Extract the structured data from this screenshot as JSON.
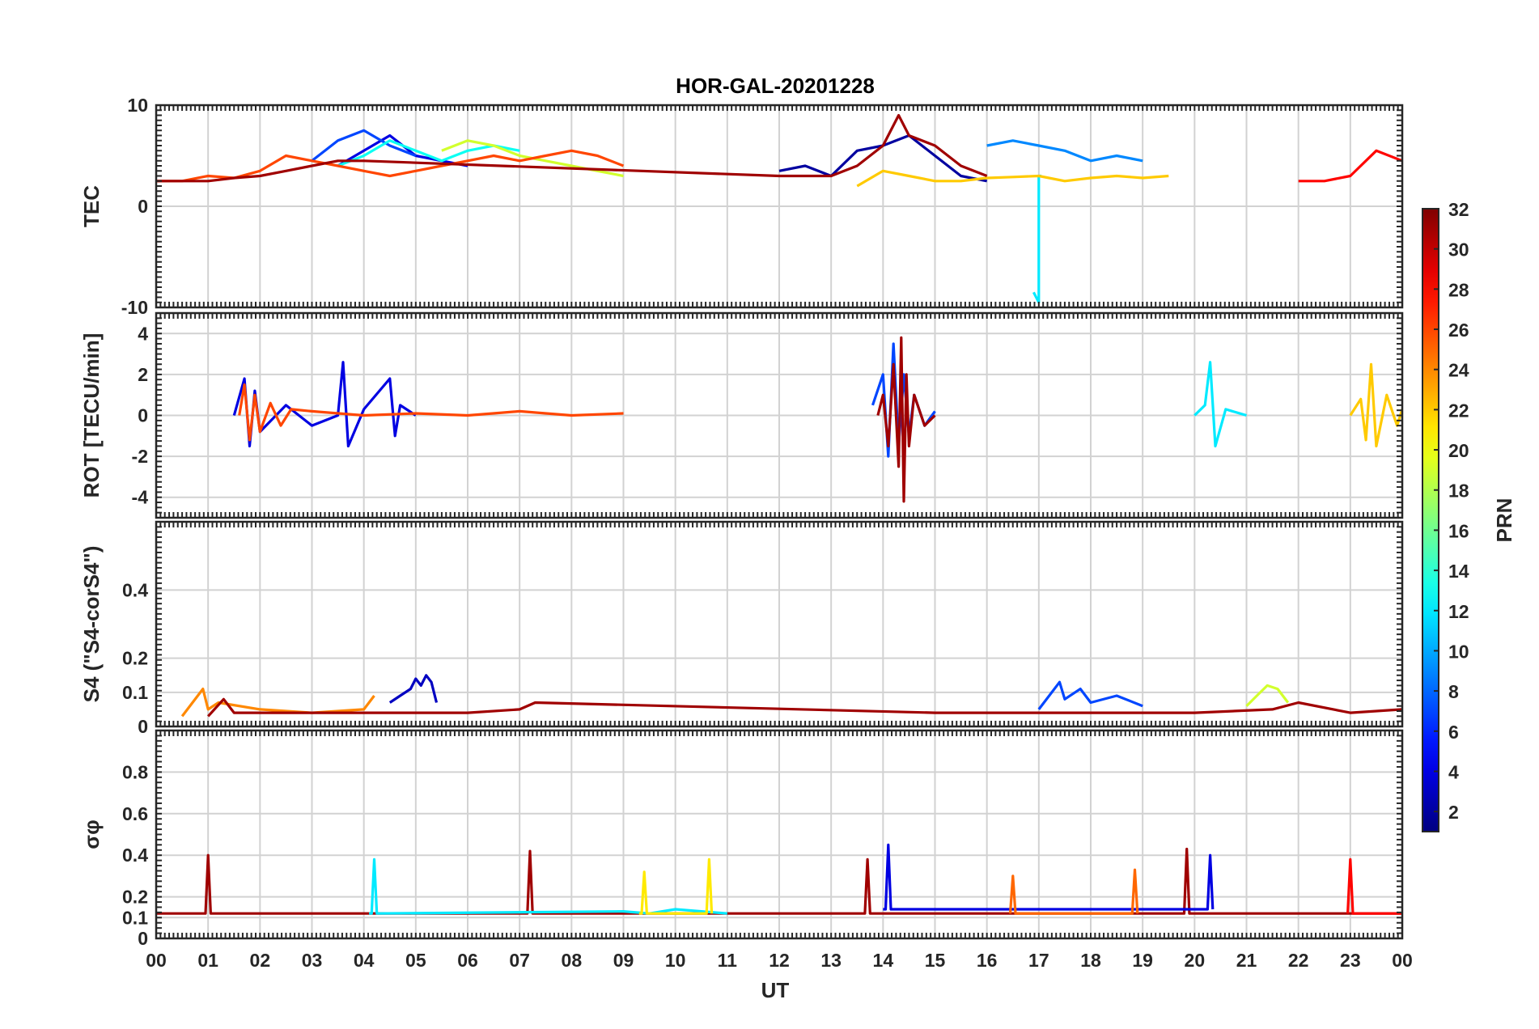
{
  "chart_data": {
    "type": "line",
    "title": "HOR-GAL-20201228",
    "xlabel": "UT",
    "x_ticks": [
      "00",
      "01",
      "02",
      "03",
      "04",
      "05",
      "06",
      "07",
      "08",
      "09",
      "10",
      "11",
      "12",
      "13",
      "14",
      "15",
      "16",
      "17",
      "18",
      "19",
      "20",
      "21",
      "22",
      "23",
      "00"
    ],
    "xlim": [
      0,
      24
    ],
    "colorbar": {
      "label": "PRN",
      "range": [
        1,
        32
      ],
      "ticks": [
        "2",
        "4",
        "6",
        "8",
        "10",
        "12",
        "14",
        "16",
        "18",
        "20",
        "22",
        "24",
        "26",
        "28",
        "30",
        "32"
      ]
    },
    "panels": [
      {
        "name": "tec",
        "ylabel": "TEC",
        "ylim": [
          -10,
          10
        ],
        "yticks": [
          "-10",
          "0",
          "10"
        ],
        "series": [
          {
            "prn": 2,
            "x": [
              12.0,
              12.5,
              13.0,
              13.5,
              14.0,
              14.5,
              15.0,
              15.5,
              16.0
            ],
            "y": [
              3.5,
              4.0,
              3.0,
              5.5,
              6.0,
              7.0,
              5.0,
              3.0,
              2.5
            ]
          },
          {
            "prn": 4,
            "x": [
              3.5,
              4.0,
              4.5,
              5.0,
              5.5,
              6.0
            ],
            "y": [
              4.0,
              5.5,
              7.0,
              5.0,
              4.5,
              4.0
            ]
          },
          {
            "prn": 7,
            "x": [
              3.0,
              3.5,
              4.0,
              4.5,
              5.0
            ],
            "y": [
              4.5,
              6.5,
              7.5,
              6.0,
              5.0
            ]
          },
          {
            "prn": 9,
            "x": [
              16.0,
              16.5,
              17.0,
              17.5,
              18.0,
              18.5,
              19.0
            ],
            "y": [
              6.0,
              6.5,
              6.0,
              5.5,
              4.5,
              5.0,
              4.5
            ]
          },
          {
            "prn": 12,
            "x": [
              16.9,
              17.0,
              17.0,
              17.05
            ],
            "y": [
              -8.5,
              -9.5,
              3.0,
              3.0
            ]
          },
          {
            "prn": 13,
            "x": [
              3.5,
              4.0,
              4.5,
              5.0,
              5.5,
              6.0,
              6.5,
              7.0
            ],
            "y": [
              4.0,
              5.0,
              6.5,
              5.5,
              4.5,
              5.5,
              6.0,
              5.5
            ]
          },
          {
            "prn": 19,
            "x": [
              5.5,
              6.0,
              6.5,
              7.0,
              7.5,
              8.0,
              8.5,
              9.0
            ],
            "y": [
              5.5,
              6.5,
              6.0,
              5.0,
              4.5,
              4.0,
              3.5,
              3.0
            ]
          },
          {
            "prn": 22,
            "x": [
              13.5,
              14.0,
              14.5,
              15.0,
              15.5,
              16.0,
              16.5,
              17.0,
              17.5,
              18.0,
              18.5,
              19.0,
              19.5
            ],
            "y": [
              2.0,
              3.5,
              3.0,
              2.5,
              2.5,
              2.8,
              2.9,
              3.0,
              2.5,
              2.8,
              3.0,
              2.8,
              3.0
            ]
          },
          {
            "prn": 26,
            "x": [
              0.0,
              0.5,
              1.0,
              1.5,
              2.0,
              2.5,
              3.0,
              3.5,
              4.0,
              4.5,
              5.0,
              5.5,
              6.0,
              6.5,
              7.0,
              7.5,
              8.0,
              8.5,
              9.0
            ],
            "y": [
              2.5,
              2.5,
              3.0,
              2.8,
              3.5,
              5.0,
              4.5,
              4.0,
              3.5,
              3.0,
              3.5,
              4.0,
              4.5,
              5.0,
              4.5,
              5.0,
              5.5,
              5.0,
              4.0
            ]
          },
          {
            "prn": 28,
            "x": [
              22.0,
              22.5,
              23.0,
              23.5,
              24.0
            ],
            "y": [
              2.5,
              2.5,
              3.0,
              5.5,
              4.5
            ]
          },
          {
            "prn": 31,
            "x": [
              0.0,
              0.5,
              1.0,
              1.5,
              2.0,
              2.5,
              3.0,
              3.5,
              4.0,
              12.0,
              13.0,
              13.5,
              14.0,
              14.3,
              14.5,
              15.0,
              15.5,
              16.0
            ],
            "y": [
              2.5,
              2.5,
              2.5,
              2.8,
              3.0,
              3.5,
              4.0,
              4.5,
              4.5,
              3.0,
              3.0,
              4.0,
              6.0,
              9.0,
              7.0,
              6.0,
              4.0,
              3.0
            ]
          }
        ]
      },
      {
        "name": "rot",
        "ylabel": "ROT [TECU/min]",
        "ylim": [
          -5,
          5
        ],
        "yticks": [
          "-4",
          "-2",
          "0",
          "2",
          "4"
        ],
        "series": [
          {
            "prn": 4,
            "x": [
              1.5,
              1.7,
              1.8,
              1.9,
              2.0,
              2.5,
              3.0,
              3.5,
              3.6,
              3.7,
              4.0,
              4.5,
              4.6,
              4.7,
              5.0
            ],
            "y": [
              0.0,
              1.8,
              -1.5,
              1.2,
              -0.8,
              0.5,
              -0.5,
              0.0,
              2.6,
              -1.5,
              0.3,
              1.8,
              -1.0,
              0.5,
              0.0
            ]
          },
          {
            "prn": 7,
            "x": [
              13.8,
              14.0,
              14.1,
              14.2,
              14.3,
              14.4,
              14.5,
              14.6,
              14.8,
              15.0
            ],
            "y": [
              0.5,
              2.0,
              -2.0,
              3.5,
              -1.5,
              2.0,
              -1.0,
              1.0,
              -0.5,
              0.2
            ]
          },
          {
            "prn": 12,
            "x": [
              20.0,
              20.2,
              20.3,
              20.4,
              20.6,
              21.0
            ],
            "y": [
              0.0,
              0.5,
              2.6,
              -1.5,
              0.3,
              0.0
            ]
          },
          {
            "prn": 22,
            "x": [
              23.0,
              23.2,
              23.3,
              23.4,
              23.5,
              23.7,
              23.9,
              24.0
            ],
            "y": [
              0.0,
              0.8,
              -1.2,
              2.5,
              -1.5,
              1.0,
              -0.5,
              0.3
            ]
          },
          {
            "prn": 26,
            "x": [
              1.6,
              1.7,
              1.8,
              1.9,
              2.0,
              2.2,
              2.4,
              2.6,
              3.0,
              4.0,
              5.0,
              6.0,
              7.0,
              8.0,
              9.0
            ],
            "y": [
              0.0,
              1.5,
              -1.2,
              1.0,
              -0.8,
              0.6,
              -0.5,
              0.3,
              0.2,
              0.0,
              0.1,
              0.0,
              0.2,
              0.0,
              0.1
            ]
          },
          {
            "prn": 31,
            "x": [
              13.9,
              14.0,
              14.1,
              14.2,
              14.3,
              14.35,
              14.4,
              14.45,
              14.5,
              14.6,
              14.8,
              15.0
            ],
            "y": [
              0.0,
              1.0,
              -1.5,
              2.5,
              -2.5,
              3.8,
              -4.2,
              2.0,
              -1.5,
              1.0,
              -0.5,
              0.0
            ]
          }
        ]
      },
      {
        "name": "s4",
        "ylabel": "S4 (\"S4-corS4\")",
        "ylim": [
          0,
          0.6
        ],
        "yticks": [
          "0",
          "0.1",
          "0.2",
          "0.4"
        ],
        "series": [
          {
            "prn": 3,
            "x": [
              4.5,
              4.7,
              4.9,
              5.0,
              5.1,
              5.2,
              5.3,
              5.4
            ],
            "y": [
              0.07,
              0.09,
              0.11,
              0.14,
              0.12,
              0.15,
              0.13,
              0.07
            ]
          },
          {
            "prn": 7,
            "x": [
              17.0,
              17.4,
              17.5,
              17.8,
              18.0,
              18.5,
              19.0
            ],
            "y": [
              0.05,
              0.13,
              0.08,
              0.11,
              0.07,
              0.09,
              0.06
            ]
          },
          {
            "prn": 19,
            "x": [
              21.0,
              21.2,
              21.4,
              21.6,
              21.8
            ],
            "y": [
              0.06,
              0.09,
              0.12,
              0.11,
              0.07
            ]
          },
          {
            "prn": 24,
            "x": [
              0.5,
              0.9,
              1.0,
              1.2,
              2.0,
              3.0,
              4.0,
              4.2
            ],
            "y": [
              0.03,
              0.11,
              0.05,
              0.07,
              0.05,
              0.04,
              0.05,
              0.09
            ]
          },
          {
            "prn": 31,
            "x": [
              1.0,
              1.3,
              1.5,
              6.0,
              7.0,
              7.3,
              15.0,
              20.0,
              21.5,
              22.0,
              23.0,
              24.0
            ],
            "y": [
              0.03,
              0.08,
              0.04,
              0.04,
              0.05,
              0.07,
              0.04,
              0.04,
              0.05,
              0.07,
              0.04,
              0.05
            ]
          }
        ]
      },
      {
        "name": "sigma_phi",
        "ylabel": "σφ",
        "ylim": [
          0,
          1
        ],
        "yticks": [
          "0",
          "0.1",
          "0.2",
          "0.4",
          "0.6",
          "0.8"
        ],
        "series": [
          {
            "prn": 31,
            "x": [
              0.0,
              0.95,
              1.0,
              1.05,
              2.0,
              7.15,
              7.2,
              7.25,
              13.65,
              13.7,
              13.75,
              19.8,
              19.85,
              19.9,
              24.0
            ],
            "y": [
              0.12,
              0.12,
              0.4,
              0.12,
              0.12,
              0.12,
              0.42,
              0.12,
              0.12,
              0.38,
              0.12,
              0.12,
              0.43,
              0.12,
              0.12
            ]
          },
          {
            "prn": 4,
            "x": [
              14.0,
              14.05,
              14.1,
              14.15,
              20.2,
              20.25,
              20.3,
              20.35
            ],
            "y": [
              0.14,
              0.14,
              0.45,
              0.14,
              0.14,
              0.14,
              0.4,
              0.14
            ]
          },
          {
            "prn": 12,
            "x": [
              4.1,
              4.15,
              4.2,
              4.25,
              9.0,
              9.5,
              10.0,
              11.0
            ],
            "y": [
              0.12,
              0.12,
              0.38,
              0.12,
              0.13,
              0.12,
              0.14,
              0.12
            ]
          },
          {
            "prn": 21,
            "x": [
              9.3,
              9.35,
              9.4,
              9.45,
              10.55,
              10.6,
              10.65,
              10.7
            ],
            "y": [
              0.12,
              0.12,
              0.32,
              0.12,
              0.12,
              0.12,
              0.38,
              0.12
            ]
          },
          {
            "prn": 25,
            "x": [
              16.45,
              16.5,
              16.55,
              18.8,
              18.85,
              18.9
            ],
            "y": [
              0.12,
              0.3,
              0.12,
              0.12,
              0.33,
              0.12
            ]
          },
          {
            "prn": 28,
            "x": [
              22.95,
              23.0,
              23.05,
              24.0
            ],
            "y": [
              0.12,
              0.38,
              0.12,
              0.12
            ]
          }
        ]
      }
    ]
  }
}
